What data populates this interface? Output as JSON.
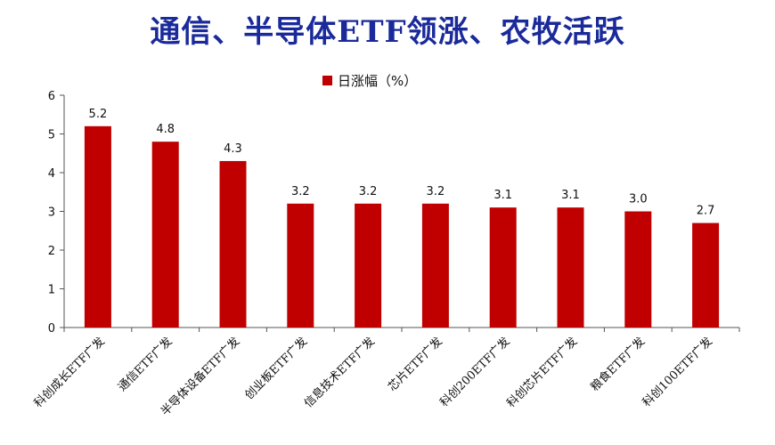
{
  "colors": {
    "title": "#1a2a9a",
    "bar": "#c00000",
    "axis": "#555555"
  },
  "chart_data": {
    "type": "bar",
    "title": "通信、半导体ETF领涨、农牧活跃",
    "categories": [
      "科创成长ETF广发",
      "通信ETF广发",
      "半导体设备ETF广发",
      "创业板ETF广发",
      "信息技术ETF广发",
      "芯片ETF广发",
      "科创200ETF广发",
      "科创芯片ETF广发",
      "粮食ETF广发",
      "科创100ETF广发"
    ],
    "series": [
      {
        "name": "日涨幅（%）",
        "values": [
          5.2,
          4.8,
          4.3,
          3.2,
          3.2,
          3.2,
          3.1,
          3.1,
          3.0,
          2.7
        ]
      }
    ],
    "data_labels": [
      "5.2",
      "4.8",
      "4.3",
      "3.2",
      "3.2",
      "3.2",
      "3.1",
      "3.1",
      "3.0",
      "2.7"
    ],
    "ylim": [
      0,
      6
    ],
    "yticks": [
      0,
      1,
      2,
      3,
      4,
      5,
      6
    ],
    "grid": false,
    "legend_position": "top-center"
  }
}
